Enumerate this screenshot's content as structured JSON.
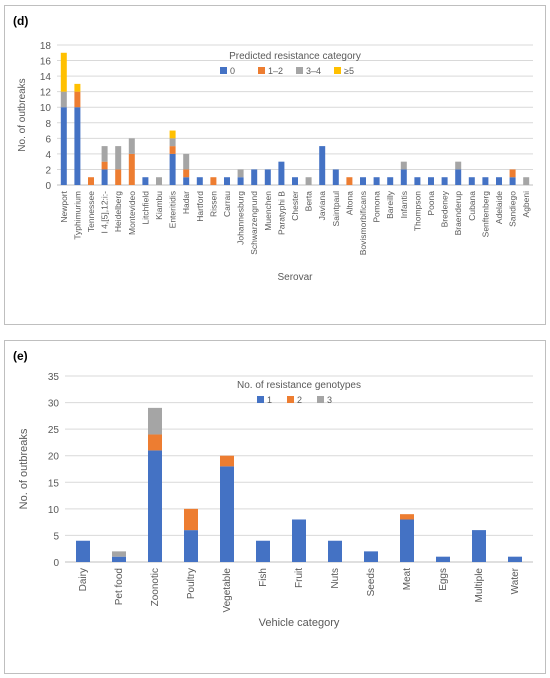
{
  "colors": {
    "series_blue": "#4472C4",
    "series_orange": "#ED7D31",
    "series_gray": "#A5A5A5",
    "series_yellow": "#FFC000",
    "grid": "#d9d9d9",
    "axis_text": "#595959"
  },
  "chart_data": [
    {
      "panel_label": "(d)",
      "type": "bar",
      "stacked": true,
      "legend_title": "Predicted resistance category",
      "legend_position": "top-center",
      "xlabel": "Serovar",
      "ylabel": "No. of outbreaks",
      "ylim": [
        0,
        18
      ],
      "yticks": [
        0,
        2,
        4,
        6,
        8,
        10,
        12,
        14,
        16,
        18
      ],
      "grid": true,
      "categories": [
        "Newport",
        "Typhimurium",
        "Tennessee",
        "I 4,[5],12:i:-",
        "Heidelberg",
        "Montevideo",
        "Litchfield",
        "Kiambu",
        "Enteritidis",
        "Hadar",
        "Hartford",
        "Rissen",
        "Carrau",
        "Johannesburg",
        "Schwarzengrund",
        "Muenchen",
        "Paratyphi B",
        "Chester",
        "Berta",
        "Javiana",
        "Saintpaul",
        "Altona",
        "Bovismorbificans",
        "Pomona",
        "Bareilly",
        "Infantis",
        "Thompson",
        "Poona",
        "Bredeney",
        "Braenderup",
        "Cubana",
        "Senftenberg",
        "Adelaide",
        "Sandiego",
        "Agbeni"
      ],
      "series": [
        {
          "name": "0",
          "color": "#4472C4",
          "values": [
            10,
            10,
            0,
            2,
            0,
            0,
            1,
            0,
            4,
            1,
            1,
            0,
            1,
            1,
            2,
            2,
            3,
            1,
            0,
            5,
            2,
            0,
            1,
            1,
            1,
            2,
            1,
            1,
            1,
            2,
            1,
            1,
            1,
            1,
            0
          ]
        },
        {
          "name": "1–2",
          "color": "#ED7D31",
          "values": [
            0,
            2,
            1,
            1,
            2,
            4,
            0,
            0,
            1,
            1,
            0,
            1,
            0,
            0,
            0,
            0,
            0,
            0,
            0,
            0,
            0,
            1,
            0,
            0,
            0,
            0,
            0,
            0,
            0,
            0,
            0,
            0,
            0,
            1,
            0
          ]
        },
        {
          "name": "3–4",
          "color": "#A5A5A5",
          "values": [
            2,
            0,
            0,
            2,
            3,
            2,
            0,
            1,
            1,
            2,
            0,
            0,
            0,
            1,
            0,
            0,
            0,
            0,
            1,
            0,
            0,
            0,
            0,
            0,
            0,
            1,
            0,
            0,
            0,
            1,
            0,
            0,
            0,
            0,
            1
          ]
        },
        {
          "name": "≥5",
          "color": "#FFC000",
          "values": [
            5,
            1,
            0,
            0,
            0,
            0,
            0,
            0,
            1,
            0,
            0,
            0,
            0,
            0,
            0,
            0,
            0,
            0,
            0,
            0,
            0,
            0,
            0,
            0,
            0,
            0,
            0,
            0,
            0,
            0,
            0,
            0,
            0,
            0,
            0
          ]
        }
      ]
    },
    {
      "panel_label": "(e)",
      "type": "bar",
      "stacked": true,
      "legend_title": "No. of resistance genotypes",
      "legend_position": "top-center",
      "xlabel": "Vehicle category",
      "ylabel": "No. of outbreaks",
      "ylim": [
        0,
        35
      ],
      "yticks": [
        0,
        5,
        10,
        15,
        20,
        25,
        30,
        35
      ],
      "grid": true,
      "categories": [
        "Dairy",
        "Pet food",
        "Zoonotic",
        "Poultry",
        "Vegetable",
        "Fish",
        "Fruit",
        "Nuts",
        "Seeds",
        "Meat",
        "Eggs",
        "Multiple",
        "Water"
      ],
      "series": [
        {
          "name": "1",
          "color": "#4472C4",
          "values": [
            4,
            1,
            21,
            6,
            18,
            4,
            8,
            4,
            2,
            8,
            1,
            6,
            1
          ]
        },
        {
          "name": "2",
          "color": "#ED7D31",
          "values": [
            0,
            0,
            3,
            4,
            2,
            0,
            0,
            0,
            0,
            1,
            0,
            0,
            0
          ]
        },
        {
          "name": "3",
          "color": "#A5A5A5",
          "values": [
            0,
            1,
            5,
            0,
            0,
            0,
            0,
            0,
            0,
            0,
            0,
            0,
            0
          ]
        }
      ]
    }
  ]
}
